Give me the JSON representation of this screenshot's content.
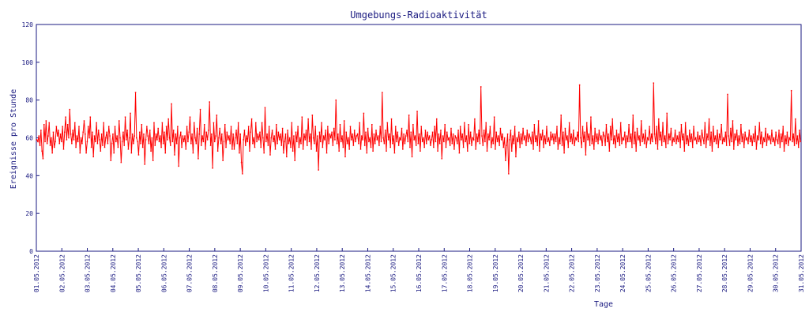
{
  "chart_data": {
    "type": "line",
    "title": "Umgebungs-Radioaktivität",
    "xlabel": "Tage",
    "ylabel": "Ereignisse pro Stunde",
    "ylim": [
      0,
      120
    ],
    "yticks": [
      "0",
      "20",
      "40",
      "60",
      "80",
      "100",
      "120"
    ],
    "xlim": [
      "01.05.2012",
      "31.05.2012"
    ],
    "xtick_labels": [
      "01.05.2012",
      "02.05.2012",
      "03.05.2012",
      "04.05.2012",
      "05.05.2012",
      "06.05.2012",
      "07.05.2012",
      "08.05.2012",
      "09.05.2012",
      "10.05.2012",
      "11.05.2012",
      "12.05.2012",
      "13.05.2012",
      "14.05.2012",
      "15.05.2012",
      "16.05.2012",
      "17.05.2012",
      "18.05.2012",
      "19.05.2012",
      "20.05.2012",
      "21.05.2012",
      "22.05.2012",
      "23.05.2012",
      "24.05.2012",
      "25.05.2012",
      "26.05.2012",
      "27.05.2012",
      "28.05.2012",
      "29.05.2012",
      "30.05.2012",
      "31.05.2012"
    ],
    "grid": false,
    "legend": "none",
    "series": [
      {
        "color": "#ff0000",
        "sampling": "hourly",
        "values": [
          59,
          58,
          61,
          56,
          64,
          53,
          49,
          67,
          58,
          69,
          57,
          61,
          68,
          56,
          60,
          52,
          63,
          55,
          58,
          66,
          61,
          64,
          57,
          62,
          58,
          66,
          54,
          63,
          71,
          59,
          67,
          60,
          75,
          62,
          57,
          64,
          59,
          68,
          55,
          61,
          58,
          66,
          52,
          60,
          57,
          63,
          69,
          62,
          52,
          58,
          66,
          60,
          71,
          55,
          63,
          50,
          61,
          58,
          68,
          57,
          64,
          59,
          53,
          62,
          56,
          68,
          55,
          60,
          63,
          57,
          66,
          61,
          48,
          57,
          62,
          52,
          66,
          58,
          61,
          55,
          69,
          60,
          47,
          58,
          63,
          56,
          71,
          59,
          64,
          54,
          60,
          73,
          52,
          62,
          57,
          61,
          84,
          60,
          58,
          51,
          63,
          57,
          67,
          55,
          62,
          46,
          59,
          66,
          61,
          57,
          64,
          53,
          60,
          48,
          68,
          56,
          62,
          59,
          65,
          58,
          61,
          55,
          68,
          57,
          63,
          52,
          66,
          59,
          70,
          60,
          56,
          78,
          58,
          64,
          51,
          62,
          57,
          66,
          45,
          60,
          63,
          55,
          61,
          58,
          61,
          54,
          66,
          58,
          63,
          71,
          57,
          62,
          52,
          68,
          60,
          57,
          65,
          49,
          62,
          75,
          56,
          61,
          58,
          67,
          54,
          63,
          59,
          64,
          79,
          56,
          62,
          44,
          68,
          58,
          61,
          72,
          53,
          60,
          65,
          57,
          62,
          48,
          58,
          67,
          55,
          63,
          59,
          61,
          57,
          66,
          54,
          62,
          54,
          60,
          64,
          57,
          68,
          52,
          62,
          47,
          41,
          59,
          64,
          56,
          61,
          58,
          66,
          53,
          63,
          70,
          57,
          60,
          55,
          68,
          58,
          62,
          59,
          63,
          55,
          68,
          60,
          52,
          76,
          58,
          62,
          56,
          66,
          51,
          60,
          64,
          58,
          61,
          54,
          67,
          57,
          63,
          59,
          62,
          56,
          65,
          52,
          58,
          62,
          50,
          64,
          57,
          60,
          55,
          68,
          53,
          61,
          48,
          63,
          58,
          66,
          55,
          60,
          57,
          71,
          54,
          62,
          59,
          64,
          56,
          70,
          58,
          62,
          54,
          72,
          60,
          57,
          66,
          53,
          61,
          43,
          63,
          58,
          68,
          55,
          61,
          59,
          64,
          52,
          66,
          57,
          62,
          60,
          63,
          56,
          65,
          59,
          80,
          57,
          62,
          53,
          67,
          58,
          61,
          55,
          69,
          50,
          63,
          57,
          60,
          54,
          66,
          59,
          62,
          56,
          64,
          58,
          61,
          62,
          57,
          68,
          54,
          61,
          59,
          73,
          56,
          63,
          52,
          65,
          58,
          60,
          55,
          67,
          53,
          62,
          57,
          64,
          59,
          61,
          56,
          66,
          58,
          84,
          60,
          57,
          64,
          53,
          68,
          59,
          62,
          55,
          70,
          57,
          61,
          52,
          66,
          58,
          63,
          56,
          60,
          59,
          65,
          54,
          62,
          57,
          61,
          64,
          58,
          72,
          55,
          63,
          50,
          67,
          59,
          61,
          56,
          74,
          57,
          62,
          53,
          66,
          58,
          60,
          55,
          64,
          57,
          63,
          59,
          61,
          56,
          59,
          63,
          55,
          66,
          58,
          70,
          53,
          62,
          57,
          64,
          49,
          61,
          58,
          67,
          55,
          63,
          59,
          60,
          56,
          65,
          57,
          62,
          54,
          61,
          60,
          57,
          64,
          52,
          66,
          59,
          62,
          55,
          68,
          58,
          61,
          53,
          67,
          57,
          63,
          56,
          60,
          59,
          70,
          54,
          62,
          58,
          64,
          57,
          87,
          61,
          56,
          64,
          58,
          68,
          53,
          62,
          59,
          66,
          55,
          60,
          57,
          71,
          54,
          63,
          58,
          61,
          56,
          65,
          59,
          62,
          55,
          60,
          48,
          56,
          62,
          41,
          59,
          64,
          53,
          61,
          57,
          66,
          50,
          60,
          58,
          63,
          55,
          62,
          57,
          65,
          59,
          61,
          56,
          64,
          58,
          62,
          60,
          57,
          63,
          54,
          67,
          58,
          61,
          56,
          69,
          53,
          62,
          59,
          64,
          55,
          61,
          57,
          66,
          58,
          60,
          56,
          63,
          59,
          62,
          57,
          62,
          58,
          66,
          54,
          60,
          57,
          72,
          56,
          63,
          52,
          65,
          59,
          61,
          55,
          68,
          58,
          62,
          57,
          64,
          56,
          60,
          59,
          63,
          58,
          88,
          60,
          55,
          66,
          58,
          63,
          51,
          68,
          59,
          62,
          56,
          71,
          57,
          61,
          54,
          65,
          58,
          62,
          57,
          64,
          59,
          61,
          56,
          63,
          61,
          56,
          67,
          58,
          62,
          53,
          66,
          59,
          70,
          57,
          61,
          55,
          64,
          58,
          62,
          56,
          68,
          57,
          60,
          59,
          63,
          55,
          61,
          58,
          67,
          58,
          62,
          55,
          72,
          57,
          63,
          53,
          65,
          59,
          61,
          56,
          69,
          58,
          62,
          57,
          64,
          55,
          60,
          59,
          66,
          57,
          62,
          58,
          89,
          62,
          57,
          66,
          54,
          70,
          59,
          63,
          56,
          68,
          58,
          61,
          55,
          73,
          57,
          62,
          59,
          65,
          56,
          60,
          58,
          64,
          57,
          61,
          58,
          63,
          55,
          67,
          59,
          62,
          53,
          68,
          57,
          61,
          56,
          64,
          58,
          62,
          55,
          66,
          59,
          60,
          57,
          63,
          58,
          61,
          56,
          64,
          60,
          57,
          68,
          55,
          62,
          59,
          70,
          56,
          63,
          53,
          66,
          58,
          61,
          57,
          64,
          55,
          62,
          59,
          67,
          57,
          60,
          58,
          63,
          56,
          83,
          61,
          56,
          65,
          58,
          69,
          54,
          62,
          59,
          64,
          56,
          61,
          57,
          67,
          58,
          62,
          55,
          63,
          59,
          60,
          57,
          64,
          58,
          61,
          56,
          62,
          58,
          66,
          54,
          61,
          59,
          68,
          57,
          63,
          55,
          60,
          58,
          65,
          56,
          62,
          59,
          61,
          57,
          64,
          58,
          60,
          56,
          63,
          59,
          57,
          64,
          55,
          62,
          58,
          66,
          53,
          61,
          57,
          63,
          56,
          60,
          59,
          85,
          58,
          62,
          56,
          70,
          57,
          61,
          55,
          64,
          58
        ]
      }
    ]
  }
}
